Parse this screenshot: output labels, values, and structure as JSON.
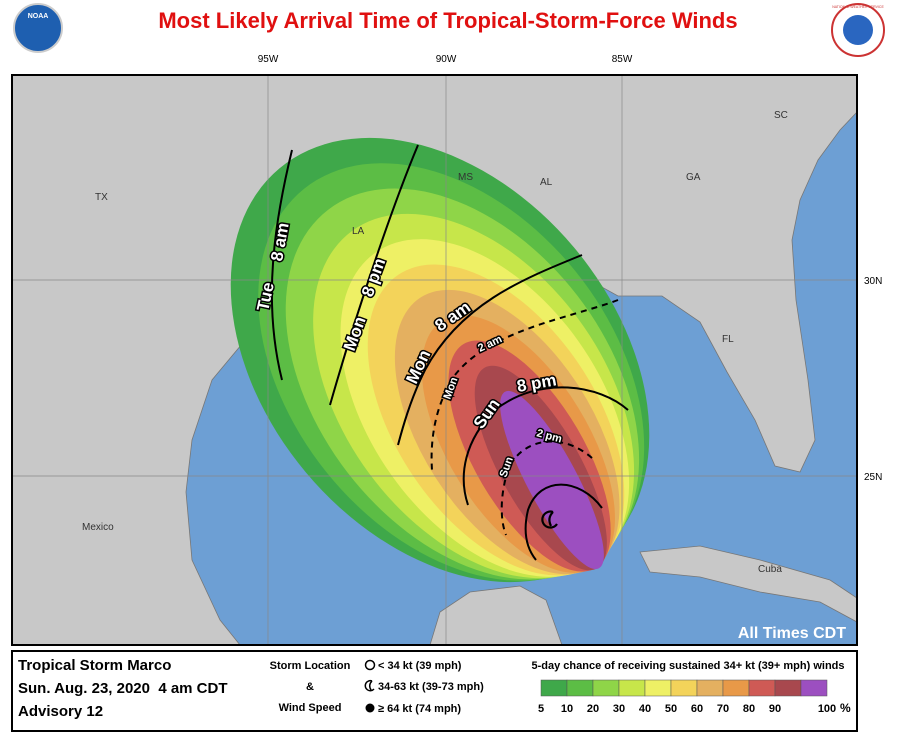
{
  "header": {
    "title": "Most Likely Arrival Time of Tropical-Storm-Force Winds",
    "logo_left": "NOAA",
    "logo_right": "NATIONAL WEATHER SERVICE"
  },
  "graticule": {
    "longitude": [
      "95W",
      "90W",
      "85W"
    ],
    "latitude": [
      "30N",
      "25N"
    ]
  },
  "places": [
    "TX",
    "LA",
    "MS",
    "AL",
    "GA",
    "SC",
    "FL",
    "Mexico",
    "Cuba"
  ],
  "arrival_times": [
    {
      "day": "Tue",
      "time": "8 am"
    },
    {
      "day": "Mon",
      "time": "8 pm"
    },
    {
      "day": "Mon",
      "time": "8 am"
    },
    {
      "day": "Sun",
      "time": "8 pm"
    },
    {
      "day": "Mon",
      "time": "2 am"
    },
    {
      "day": "Sun",
      "time": "2 pm"
    }
  ],
  "note": "All Times CDT",
  "footer": {
    "storm": "Tropical Storm Marco",
    "issued": "Sun. Aug. 23, 2020  4 am CDT",
    "advisory": "Advisory 12",
    "storm_key": {
      "title": [
        "Storm Location",
        "&",
        "Wind Speed"
      ],
      "items": [
        "< 34 kt (39 mph)",
        "34-63 kt (39-73 mph)",
        "≥ 64 kt (74 mph)"
      ]
    },
    "probability": {
      "title": "5-day chance of receiving sustained 34+ kt (39+ mph) winds",
      "unit": "%",
      "levels": [
        {
          "value": 5,
          "color": "#3fa84a"
        },
        {
          "value": 10,
          "color": "#5cbd45"
        },
        {
          "value": 20,
          "color": "#8fd548"
        },
        {
          "value": 30,
          "color": "#c7e64a"
        },
        {
          "value": 40,
          "color": "#eef065"
        },
        {
          "value": 50,
          "color": "#f3d35a"
        },
        {
          "value": 60,
          "color": "#e4b060"
        },
        {
          "value": 70,
          "color": "#e89948"
        },
        {
          "value": 80,
          "color": "#cf5a55"
        },
        {
          "value": 90,
          "color": "#a8484e"
        },
        {
          "value": 100,
          "color": "#9c4fc0"
        }
      ]
    }
  }
}
